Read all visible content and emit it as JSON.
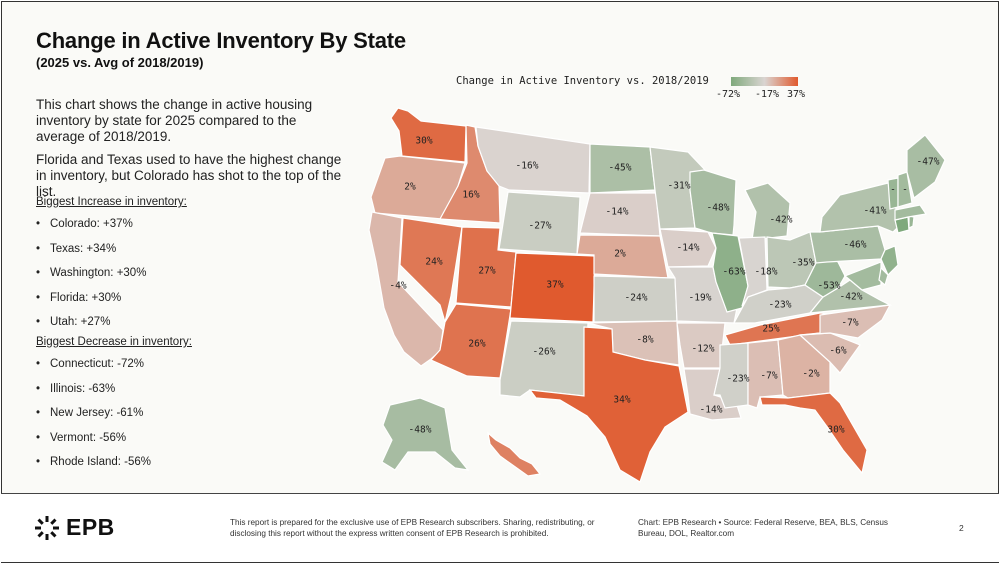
{
  "header": {
    "title": "Change in Active Inventory By State",
    "subtitle": "(2025 vs. Avg of 2018/2019)"
  },
  "description": {
    "p1": "This chart shows the change in active housing inventory by state for 2025 compared to the average of 2018/2019.",
    "p2": "Florida and Texas used to have the highest change in inventory, but Colorado has shot to the top of the list."
  },
  "increase_list": {
    "heading": "Biggest Increase in inventory:",
    "items": [
      "Colorado: +37%",
      "Texas: +34%",
      "Washington: +30%",
      "Florida: +30%",
      "Utah: +27%"
    ]
  },
  "decrease_list": {
    "heading": "Biggest Decrease in inventory:",
    "items": [
      "Connecticut: -72%",
      "Illinois: -63%",
      "New Jersey: -61%",
      "Vermont: -56%",
      "Rhode Island: -56%"
    ]
  },
  "bullet": "•",
  "legend": {
    "title": "Change in Active Inventory vs. 2018/2019",
    "min_label": "-72%",
    "mid_label": "-17%",
    "max_label": "37%",
    "colors": {
      "low": "#7fa97c",
      "mid": "#dad5d2",
      "high": "#e05a2e"
    }
  },
  "chart_data": {
    "type": "choropleth",
    "title": "Change in Active Inventory By State",
    "subtitle": "(2025 vs. Avg of 2018/2019)",
    "value_range": [
      -72,
      37
    ],
    "midpoint": -17,
    "states": [
      {
        "state": "WA",
        "value": 30,
        "label": "30%"
      },
      {
        "state": "OR",
        "value": 2,
        "label": "2%"
      },
      {
        "state": "CA",
        "value": -4,
        "label": "-4%"
      },
      {
        "state": "NV",
        "value": 24,
        "label": "24%"
      },
      {
        "state": "ID",
        "value": 16,
        "label": "16%"
      },
      {
        "state": "MT",
        "value": -16,
        "label": "-16%"
      },
      {
        "state": "WY",
        "value": -27,
        "label": "-27%"
      },
      {
        "state": "UT",
        "value": 27,
        "label": "27%"
      },
      {
        "state": "AZ",
        "value": 26,
        "label": "26%"
      },
      {
        "state": "CO",
        "value": 37,
        "label": "37%"
      },
      {
        "state": "NM",
        "value": -26,
        "label": "-26%"
      },
      {
        "state": "ND",
        "value": -45,
        "label": "-45%"
      },
      {
        "state": "SD",
        "value": -14,
        "label": "-14%"
      },
      {
        "state": "NE",
        "value": 2,
        "label": "2%"
      },
      {
        "state": "KS",
        "value": -24,
        "label": "-24%"
      },
      {
        "state": "OK",
        "value": -8,
        "label": "-8%"
      },
      {
        "state": "TX",
        "value": 34,
        "label": "34%"
      },
      {
        "state": "MN",
        "value": -31,
        "label": "-31%"
      },
      {
        "state": "IA",
        "value": -14,
        "label": "-14%"
      },
      {
        "state": "MO",
        "value": -19,
        "label": "-19%"
      },
      {
        "state": "AR",
        "value": -12,
        "label": "-12%"
      },
      {
        "state": "LA",
        "value": -14,
        "label": "-14%"
      },
      {
        "state": "WI",
        "value": -48,
        "label": "-48%"
      },
      {
        "state": "IL",
        "value": -63,
        "label": "-63%"
      },
      {
        "state": "MI",
        "value": -42,
        "label": "-42%"
      },
      {
        "state": "IN",
        "value": -18,
        "label": "-18%"
      },
      {
        "state": "OH",
        "value": -35,
        "label": "-35%"
      },
      {
        "state": "KY",
        "value": -23,
        "label": "-23%"
      },
      {
        "state": "TN",
        "value": 25,
        "label": "25%"
      },
      {
        "state": "MS",
        "value": -23,
        "label": "-23%"
      },
      {
        "state": "AL",
        "value": -7,
        "label": "-7%"
      },
      {
        "state": "GA",
        "value": -2,
        "label": "-2%"
      },
      {
        "state": "FL",
        "value": 30,
        "label": "30%"
      },
      {
        "state": "SC",
        "value": -6,
        "label": "-6%"
      },
      {
        "state": "NC",
        "value": -7,
        "label": "-7%"
      },
      {
        "state": "VA",
        "value": -42,
        "label": "-42%"
      },
      {
        "state": "WV",
        "value": -53,
        "label": "-53%"
      },
      {
        "state": "PA",
        "value": -46,
        "label": "-46%"
      },
      {
        "state": "NY",
        "value": -41,
        "label": "-41%"
      },
      {
        "state": "NJ",
        "value": -61,
        "label": ""
      },
      {
        "state": "CT",
        "value": -72,
        "label": ""
      },
      {
        "state": "RI",
        "value": -56,
        "label": ""
      },
      {
        "state": "MA",
        "value": -50,
        "label": ""
      },
      {
        "state": "VT",
        "value": -56,
        "label": "-"
      },
      {
        "state": "NH",
        "value": -50,
        "label": "-"
      },
      {
        "state": "ME",
        "value": -47,
        "label": "-47%"
      },
      {
        "state": "MD",
        "value": -50,
        "label": ""
      },
      {
        "state": "DE",
        "value": -50,
        "label": ""
      },
      {
        "state": "AK",
        "value": -48,
        "label": "-48%"
      },
      {
        "state": "HI",
        "value": 20,
        "label": ""
      }
    ]
  },
  "footer": {
    "logo_text": "EPB",
    "disclaimer": "This report is prepared for the exclusive use of EPB Research subscribers. Sharing, redistributing, or disclosing this report without the express written consent of EPB Research is prohibited.",
    "source": "Chart: EPB Research • Source: Federal Reserve, BEA, BLS, Census Bureau, DOL, Realtor.com",
    "page_number": "2"
  }
}
